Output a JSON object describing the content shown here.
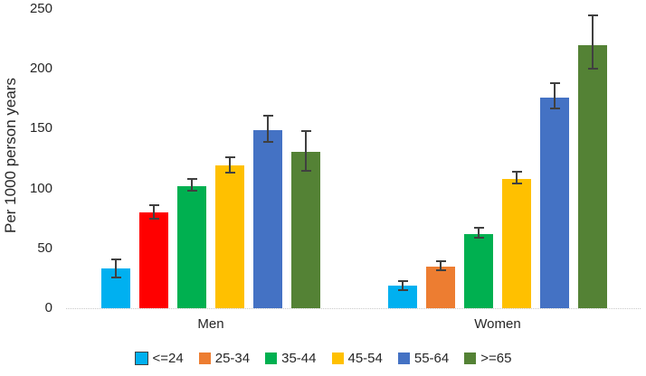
{
  "chart_data": {
    "type": "bar",
    "title": "",
    "ylabel": "Per 1000 person years",
    "xlabel": "",
    "ylim": [
      0,
      250
    ],
    "yticks": [
      0,
      50,
      100,
      150,
      200,
      250
    ],
    "grid": false,
    "legend_position": "bottom",
    "categories": [
      "Men",
      "Women"
    ],
    "series": [
      {
        "name": "<=24",
        "color": "#00B0F0",
        "bar_colors": [
          "#00B0F0",
          "#00B0F0"
        ],
        "values": [
          33,
          19
        ],
        "err_low": [
          26,
          15
        ],
        "err_high": [
          41,
          23
        ],
        "legend_swatch_border": "#404040"
      },
      {
        "name": "25-34",
        "color": "#ED7D31",
        "bar_colors": [
          "#FF0000",
          "#ED7D31"
        ],
        "values": [
          80,
          35
        ],
        "err_low": [
          75,
          32
        ],
        "err_high": [
          86,
          39
        ]
      },
      {
        "name": "35-44",
        "color": "#00B050",
        "bar_colors": [
          "#00B050",
          "#00B050"
        ],
        "values": [
          102,
          62
        ],
        "err_low": [
          98,
          59
        ],
        "err_high": [
          108,
          67
        ]
      },
      {
        "name": "45-54",
        "color": "#FFC000",
        "bar_colors": [
          "#FFC000",
          "#FFC000"
        ],
        "values": [
          119,
          108
        ],
        "err_low": [
          113,
          104
        ],
        "err_high": [
          126,
          114
        ]
      },
      {
        "name": "55-64",
        "color": "#4472C4",
        "bar_colors": [
          "#4472C4",
          "#4472C4"
        ],
        "values": [
          149,
          176
        ],
        "err_low": [
          139,
          167
        ],
        "err_high": [
          161,
          188
        ]
      },
      {
        "name": ">=65",
        "color": "#548235",
        "bar_colors": [
          "#548235",
          "#548235"
        ],
        "values": [
          131,
          220
        ],
        "err_low": [
          115,
          200
        ],
        "err_high": [
          148,
          245
        ]
      }
    ],
    "error_bar_color": "#404040",
    "axis_line_color": "#C9C9C9",
    "text_color": "#262626"
  }
}
